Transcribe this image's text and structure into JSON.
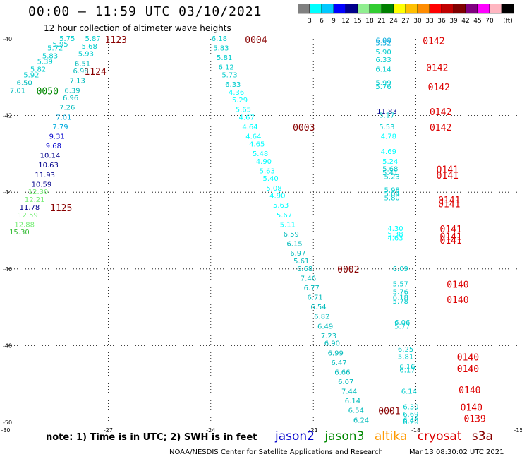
{
  "header": {
    "title": "00:00 – 11:59 UTC 03/10/2021",
    "subtitle": "12 hour collection of altimeter wave heights"
  },
  "colorbar": {
    "labels": [
      "3",
      "6",
      "9",
      "12",
      "15",
      "18",
      "21",
      "24",
      "27",
      "30",
      "33",
      "36",
      "39",
      "42",
      "45",
      "70"
    ],
    "unit": "(ft)",
    "colors": [
      "#808080",
      "#00ffff",
      "#00c8ff",
      "#0000ff",
      "#00008b",
      "#90ee90",
      "#32cd32",
      "#008000",
      "#ffff00",
      "#ffc000",
      "#ff8c00",
      "#ff0000",
      "#c00000",
      "#800000",
      "#800080",
      "#ff00ff",
      "#ffb6c1",
      "#000000"
    ]
  },
  "axes": {
    "lat_labels": [
      "-40",
      "-42",
      "-44",
      "-46",
      "-48",
      "-50"
    ],
    "lon_labels": [
      "-30",
      "-27",
      "-24",
      "-21",
      "-18",
      "-15"
    ]
  },
  "note": "note: 1) Time is in UTC; 2) SWH is in feet",
  "satellites": [
    {
      "name": "jason2",
      "color": "#0000cc"
    },
    {
      "name": "jason3",
      "color": "#008800"
    },
    {
      "name": "altika",
      "color": "#ff9900"
    },
    {
      "name": "cryosat",
      "color": "#dd0000"
    },
    {
      "name": "s3a",
      "color": "#880000"
    }
  ],
  "footer": {
    "credit": "NOAA/NESDIS Center for Satellite Applications and Research",
    "generated": "Mar 13 08:30:02 UTC 2021"
  },
  "chart_data": {
    "type": "scatter",
    "title": "00:00 – 11:59 UTC 03/10/2021",
    "xlabel": "",
    "ylabel": "",
    "xlim": [
      -30,
      -15
    ],
    "ylim": [
      -50,
      -40
    ],
    "grid": true,
    "track_labels": [
      {
        "text": "1123",
        "lon": -27.1,
        "lat": -40.02,
        "color": "#880000"
      },
      {
        "text": "1124",
        "lon": -27.7,
        "lat": -40.85,
        "color": "#880000"
      },
      {
        "text": "0050",
        "lon": -29.1,
        "lat": -41.35,
        "color": "#008800"
      },
      {
        "text": "1125",
        "lon": -28.7,
        "lat": -44.4,
        "color": "#880000"
      },
      {
        "text": "0004",
        "lon": -23.0,
        "lat": -40.02,
        "color": "#880000"
      },
      {
        "text": "0003",
        "lon": -21.6,
        "lat": -42.3,
        "color": "#880000"
      },
      {
        "text": "0002",
        "lon": -20.3,
        "lat": -46.0,
        "color": "#880000"
      },
      {
        "text": "0001",
        "lon": -19.1,
        "lat": -49.7,
        "color": "#880000"
      },
      {
        "text": "0142",
        "lon": -17.8,
        "lat": -40.05,
        "color": "#dd0000"
      },
      {
        "text": "0142",
        "lon": -17.7,
        "lat": -40.75,
        "color": "#dd0000"
      },
      {
        "text": "0142",
        "lon": -17.65,
        "lat": -41.25,
        "color": "#dd0000"
      },
      {
        "text": "0142",
        "lon": -17.6,
        "lat": -41.9,
        "color": "#dd0000"
      },
      {
        "text": "0142",
        "lon": -17.6,
        "lat": -42.3,
        "color": "#dd0000"
      },
      {
        "text": "0141",
        "lon": -17.4,
        "lat": -43.4,
        "color": "#dd0000"
      },
      {
        "text": "0141",
        "lon": -17.4,
        "lat": -43.55,
        "color": "#dd0000"
      },
      {
        "text": "0141",
        "lon": -17.35,
        "lat": -44.2,
        "color": "#dd0000"
      },
      {
        "text": "0141",
        "lon": -17.35,
        "lat": -44.3,
        "color": "#dd0000"
      },
      {
        "text": "0141",
        "lon": -17.3,
        "lat": -44.95,
        "color": "#dd0000"
      },
      {
        "text": "0141",
        "lon": -17.3,
        "lat": -45.15,
        "color": "#dd0000"
      },
      {
        "text": "0141",
        "lon": -17.3,
        "lat": -45.25,
        "color": "#dd0000"
      },
      {
        "text": "0140",
        "lon": -17.1,
        "lat": -46.4,
        "color": "#dd0000"
      },
      {
        "text": "0140",
        "lon": -17.1,
        "lat": -46.8,
        "color": "#dd0000"
      },
      {
        "text": "0140",
        "lon": -16.8,
        "lat": -48.3,
        "color": "#dd0000"
      },
      {
        "text": "0140",
        "lon": -16.8,
        "lat": -48.6,
        "color": "#dd0000"
      },
      {
        "text": "0140",
        "lon": -16.75,
        "lat": -49.15,
        "color": "#dd0000"
      },
      {
        "text": "0140",
        "lon": -16.7,
        "lat": -49.6,
        "color": "#dd0000"
      },
      {
        "text": "0139",
        "lon": -16.6,
        "lat": -49.9,
        "color": "#dd0000"
      }
    ],
    "points": [
      {
        "lon": -28.2,
        "lat": -40.0,
        "swh": 5.75,
        "color": "#00cccc"
      },
      {
        "lon": -28.4,
        "lat": -40.15,
        "swh": 5.95,
        "color": "#00cccc"
      },
      {
        "lon": -28.55,
        "lat": -40.25,
        "swh": 5.72,
        "color": "#00cccc"
      },
      {
        "lon": -28.7,
        "lat": -40.45,
        "swh": 5.83,
        "color": "#00cccc"
      },
      {
        "lon": -28.85,
        "lat": -40.6,
        "swh": 5.39,
        "color": "#00cccc"
      },
      {
        "lon": -29.05,
        "lat": -40.8,
        "swh": 5.82,
        "color": "#00cccc"
      },
      {
        "lon": -29.25,
        "lat": -40.95,
        "swh": 5.92,
        "color": "#00cccc"
      },
      {
        "lon": -29.45,
        "lat": -41.15,
        "swh": 6.5,
        "color": "#00bbbb"
      },
      {
        "lon": -29.65,
        "lat": -41.35,
        "swh": 7.01,
        "color": "#00bbbb"
      },
      {
        "lon": -27.45,
        "lat": -40.0,
        "swh": 5.87,
        "color": "#00cccc"
      },
      {
        "lon": -27.55,
        "lat": -40.2,
        "swh": 5.68,
        "color": "#00cccc"
      },
      {
        "lon": -27.65,
        "lat": -40.4,
        "swh": 5.93,
        "color": "#00cccc"
      },
      {
        "lon": -27.75,
        "lat": -40.65,
        "swh": 6.51,
        "color": "#00bbbb"
      },
      {
        "lon": -27.8,
        "lat": -40.85,
        "swh": 6.98,
        "color": "#00bbbb"
      },
      {
        "lon": -27.9,
        "lat": -41.1,
        "swh": 7.13,
        "color": "#00bbbb"
      },
      {
        "lon": -28.05,
        "lat": -41.35,
        "swh": 6.39,
        "color": "#00bbbb"
      },
      {
        "lon": -28.1,
        "lat": -41.55,
        "swh": 6.96,
        "color": "#00bbbb"
      },
      {
        "lon": -28.2,
        "lat": -41.8,
        "swh": 7.26,
        "color": "#00bbbb"
      },
      {
        "lon": -28.3,
        "lat": -42.05,
        "swh": 7.01,
        "color": "#00aadd"
      },
      {
        "lon": -28.4,
        "lat": -42.3,
        "swh": 7.79,
        "color": "#00aadd"
      },
      {
        "lon": -28.5,
        "lat": -42.55,
        "swh": 9.31,
        "color": "#0000cc"
      },
      {
        "lon": -28.6,
        "lat": -42.8,
        "swh": 9.68,
        "color": "#0000cc"
      },
      {
        "lon": -28.7,
        "lat": -43.05,
        "swh": 10.14,
        "color": "#00008b"
      },
      {
        "lon": -28.75,
        "lat": -43.3,
        "swh": 10.63,
        "color": "#00008b"
      },
      {
        "lon": -28.85,
        "lat": -43.55,
        "swh": 11.93,
        "color": "#00008b"
      },
      {
        "lon": -28.95,
        "lat": -43.8,
        "swh": 10.59,
        "color": "#00008b"
      },
      {
        "lon": -29.05,
        "lat": -44.0,
        "swh": 12.3,
        "color": "#77ee77"
      },
      {
        "lon": -29.15,
        "lat": -44.2,
        "swh": 12.21,
        "color": "#77ee77"
      },
      {
        "lon": -29.3,
        "lat": -44.4,
        "swh": 11.78,
        "color": "#00008b"
      },
      {
        "lon": -29.35,
        "lat": -44.6,
        "swh": 12.59,
        "color": "#77ee77"
      },
      {
        "lon": -29.45,
        "lat": -44.85,
        "swh": 12.88,
        "color": "#77ee77"
      },
      {
        "lon": -29.6,
        "lat": -45.05,
        "swh": 15.3,
        "color": "#33bb33"
      },
      {
        "lon": -23.75,
        "lat": -40.0,
        "swh": 6.18,
        "color": "#00cccc"
      },
      {
        "lon": -23.7,
        "lat": -40.25,
        "swh": 5.83,
        "color": "#00cccc"
      },
      {
        "lon": -23.6,
        "lat": -40.5,
        "swh": 5.81,
        "color": "#00cccc"
      },
      {
        "lon": -23.55,
        "lat": -40.75,
        "swh": 6.12,
        "color": "#00cccc"
      },
      {
        "lon": -23.45,
        "lat": -40.95,
        "swh": 5.73,
        "color": "#00cccc"
      },
      {
        "lon": -23.35,
        "lat": -41.2,
        "swh": 6.33,
        "color": "#00cccc"
      },
      {
        "lon": -23.25,
        "lat": -41.4,
        "swh": 4.36,
        "color": "#00ffff"
      },
      {
        "lon": -23.15,
        "lat": -41.6,
        "swh": 5.29,
        "color": "#00ffff"
      },
      {
        "lon": -23.05,
        "lat": -41.85,
        "swh": 5.65,
        "color": "#00ffff"
      },
      {
        "lon": -22.95,
        "lat": -42.05,
        "swh": 4.67,
        "color": "#00ffff"
      },
      {
        "lon": -22.85,
        "lat": -42.3,
        "swh": 4.64,
        "color": "#00ffff"
      },
      {
        "lon": -22.75,
        "lat": -42.55,
        "swh": 4.64,
        "color": "#00ffff"
      },
      {
        "lon": -22.65,
        "lat": -42.75,
        "swh": 4.65,
        "color": "#00ffff"
      },
      {
        "lon": -22.55,
        "lat": -43.0,
        "swh": 5.48,
        "color": "#00ffff"
      },
      {
        "lon": -22.45,
        "lat": -43.2,
        "swh": 4.9,
        "color": "#00ffff"
      },
      {
        "lon": -22.35,
        "lat": -43.45,
        "swh": 5.63,
        "color": "#00ffff"
      },
      {
        "lon": -22.25,
        "lat": -43.65,
        "swh": 5.4,
        "color": "#00ffff"
      },
      {
        "lon": -22.15,
        "lat": -43.9,
        "swh": 5.08,
        "color": "#00ffff"
      },
      {
        "lon": -22.05,
        "lat": -44.1,
        "swh": 4.9,
        "color": "#00ffff"
      },
      {
        "lon": -21.95,
        "lat": -44.35,
        "swh": 5.63,
        "color": "#00ffff"
      },
      {
        "lon": -21.85,
        "lat": -44.6,
        "swh": 5.67,
        "color": "#00ffff"
      },
      {
        "lon": -21.75,
        "lat": -44.85,
        "swh": 5.11,
        "color": "#00ffff"
      },
      {
        "lon": -21.65,
        "lat": -45.1,
        "swh": 6.59,
        "color": "#00bbbb"
      },
      {
        "lon": -21.55,
        "lat": -45.35,
        "swh": 6.15,
        "color": "#00bbbb"
      },
      {
        "lon": -21.45,
        "lat": -45.6,
        "swh": 6.97,
        "color": "#00bbbb"
      },
      {
        "lon": -21.35,
        "lat": -45.8,
        "swh": 5.61,
        "color": "#00bbbb"
      },
      {
        "lon": -21.25,
        "lat": -46.0,
        "swh": 6.68,
        "color": "#00bbbb"
      },
      {
        "lon": -21.15,
        "lat": -46.25,
        "swh": 7.46,
        "color": "#00bbbb"
      },
      {
        "lon": -21.05,
        "lat": -46.5,
        "swh": 6.77,
        "color": "#00bbbb"
      },
      {
        "lon": -20.95,
        "lat": -46.75,
        "swh": 6.71,
        "color": "#00bbbb"
      },
      {
        "lon": -20.85,
        "lat": -47.0,
        "swh": 6.54,
        "color": "#00bbbb"
      },
      {
        "lon": -20.75,
        "lat": -47.25,
        "swh": 6.82,
        "color": "#00bbbb"
      },
      {
        "lon": -20.65,
        "lat": -47.5,
        "swh": 6.49,
        "color": "#00bbbb"
      },
      {
        "lon": -20.55,
        "lat": -47.75,
        "swh": 7.23,
        "color": "#00bbbb"
      },
      {
        "lon": -20.45,
        "lat": -47.95,
        "swh": 6.9,
        "color": "#00bbbb"
      },
      {
        "lon": -20.35,
        "lat": -48.2,
        "swh": 6.99,
        "color": "#00bbbb"
      },
      {
        "lon": -20.25,
        "lat": -48.45,
        "swh": 6.47,
        "color": "#00bbbb"
      },
      {
        "lon": -20.15,
        "lat": -48.7,
        "swh": 6.66,
        "color": "#00bbbb"
      },
      {
        "lon": -20.05,
        "lat": -48.95,
        "swh": 6.07,
        "color": "#00bbbb"
      },
      {
        "lon": -19.95,
        "lat": -49.2,
        "swh": 7.44,
        "color": "#00bbbb"
      },
      {
        "lon": -19.85,
        "lat": -49.45,
        "swh": 6.14,
        "color": "#00bbbb"
      },
      {
        "lon": -19.75,
        "lat": -49.7,
        "swh": 6.54,
        "color": "#00bbbb"
      },
      {
        "lon": -19.6,
        "lat": -49.95,
        "swh": 6.24,
        "color": "#00bbbb"
      },
      {
        "lon": -18.95,
        "lat": -40.05,
        "swh": 6.08,
        "color": "#00aadd"
      },
      {
        "lon": -18.95,
        "lat": -40.12,
        "swh": 5.52,
        "color": "#00aadd"
      },
      {
        "lon": -18.95,
        "lat": -40.35,
        "swh": 5.9,
        "color": "#00cccc"
      },
      {
        "lon": -18.95,
        "lat": -40.55,
        "swh": 6.33,
        "color": "#00cccc"
      },
      {
        "lon": -18.95,
        "lat": -40.8,
        "swh": 6.14,
        "color": "#00cccc"
      },
      {
        "lon": -18.95,
        "lat": -41.15,
        "swh": 5.99,
        "color": "#00cccc"
      },
      {
        "lon": -18.95,
        "lat": -41.25,
        "swh": 5.76,
        "color": "#00cccc"
      },
      {
        "lon": -18.85,
        "lat": -41.9,
        "swh": 11.83,
        "color": "#00008b"
      },
      {
        "lon": -18.85,
        "lat": -42.0,
        "swh": 5.17,
        "color": "#00cccc"
      },
      {
        "lon": -18.85,
        "lat": -42.3,
        "swh": 5.53,
        "color": "#00cccc"
      },
      {
        "lon": -18.8,
        "lat": -42.55,
        "swh": 4.78,
        "color": "#00ffff"
      },
      {
        "lon": -18.8,
        "lat": -42.95,
        "swh": 4.69,
        "color": "#00ffff"
      },
      {
        "lon": -18.75,
        "lat": -43.2,
        "swh": 5.24,
        "color": "#00ffff"
      },
      {
        "lon": -18.75,
        "lat": -43.4,
        "swh": 5.68,
        "color": "#00cccc"
      },
      {
        "lon": -18.75,
        "lat": -43.5,
        "swh": 5.41,
        "color": "#00cccc"
      },
      {
        "lon": -18.7,
        "lat": -43.6,
        "swh": 5.23,
        "color": "#00cccc"
      },
      {
        "lon": -18.7,
        "lat": -43.95,
        "swh": 5.98,
        "color": "#00cccc"
      },
      {
        "lon": -18.7,
        "lat": -44.05,
        "swh": 5.04,
        "color": "#00cccc"
      },
      {
        "lon": -18.7,
        "lat": -44.15,
        "swh": 5.8,
        "color": "#00cccc"
      },
      {
        "lon": -18.6,
        "lat": -44.95,
        "swh": 4.3,
        "color": "#00ffff"
      },
      {
        "lon": -18.6,
        "lat": -45.1,
        "swh": 5.38,
        "color": "#00ffff"
      },
      {
        "lon": -18.6,
        "lat": -45.2,
        "swh": 4.63,
        "color": "#00ffff"
      },
      {
        "lon": -18.45,
        "lat": -46.0,
        "swh": 6.09,
        "color": "#00cccc"
      },
      {
        "lon": -18.45,
        "lat": -46.4,
        "swh": 5.57,
        "color": "#00cccc"
      },
      {
        "lon": -18.45,
        "lat": -46.6,
        "swh": 5.76,
        "color": "#00cccc"
      },
      {
        "lon": -18.45,
        "lat": -46.75,
        "swh": 6.18,
        "color": "#00cccc"
      },
      {
        "lon": -18.45,
        "lat": -46.85,
        "swh": 5.78,
        "color": "#00cccc"
      },
      {
        "lon": -18.4,
        "lat": -47.4,
        "swh": 6.06,
        "color": "#00cccc"
      },
      {
        "lon": -18.4,
        "lat": -47.5,
        "swh": 5.77,
        "color": "#00cccc"
      },
      {
        "lon": -18.3,
        "lat": -48.1,
        "swh": 6.25,
        "color": "#00cccc"
      },
      {
        "lon": -18.3,
        "lat": -48.3,
        "swh": 5.81,
        "color": "#00cccc"
      },
      {
        "lon": -18.25,
        "lat": -48.55,
        "swh": 6.16,
        "color": "#00cccc"
      },
      {
        "lon": -18.25,
        "lat": -48.65,
        "swh": 6.17,
        "color": "#00cccc"
      },
      {
        "lon": -18.2,
        "lat": -49.2,
        "swh": 6.14,
        "color": "#00cccc"
      },
      {
        "lon": -18.15,
        "lat": -49.6,
        "swh": 6.3,
        "color": "#00cccc"
      },
      {
        "lon": -18.15,
        "lat": -49.8,
        "swh": 6.69,
        "color": "#00cccc"
      },
      {
        "lon": -18.15,
        "lat": -49.95,
        "swh": 6.4,
        "color": "#00cccc"
      },
      {
        "lon": -18.15,
        "lat": -50.0,
        "swh": 6.2,
        "color": "#00cccc"
      }
    ]
  }
}
